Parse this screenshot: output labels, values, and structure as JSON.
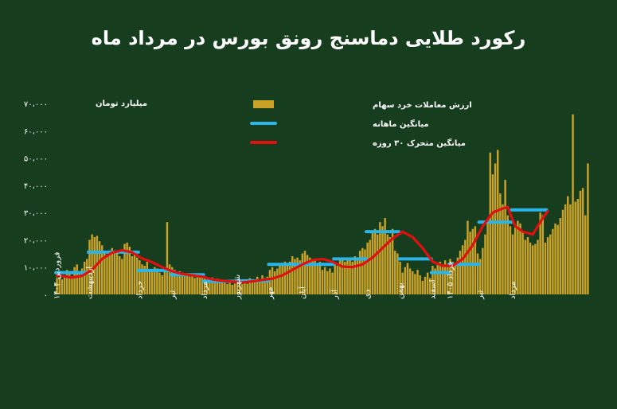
{
  "page": {
    "title": "رکورد طلایی دماسنج رونق بورس در مرداد ماه"
  },
  "colors": {
    "background": "#173d1f",
    "bars": "#c9a227",
    "monthly_avg": "#2ab4e8",
    "moving_avg": "#e01010",
    "text": "#ffffff"
  },
  "chart_data": {
    "type": "bar",
    "title": "رکورد طلایی دماسنج رونق بورس در مرداد ماه",
    "ylabel": "میلیارد تومان",
    "ylim": [
      0,
      70000
    ],
    "yticks": [
      0,
      10000,
      20000,
      30000,
      40000,
      50000,
      60000,
      70000
    ],
    "ytick_labels": [
      "۰",
      "۱۰،۰۰۰",
      "۲۰،۰۰۰",
      "۳۰،۰۰۰",
      "۴۰،۰۰۰",
      "۵۰،۰۰۰",
      "۶۰،۰۰۰",
      "۷۰،۰۰۰"
    ],
    "grid": false,
    "legend_position": "top-center",
    "x_labels": [
      {
        "label": "فروردین ۱۴۰۴",
        "index": 0
      },
      {
        "label": "اردیبهشت",
        "index": 13
      },
      {
        "label": "خرداد",
        "index": 33
      },
      {
        "label": "تیر",
        "index": 46
      },
      {
        "label": "مرداد",
        "index": 59
      },
      {
        "label": "شهریور",
        "index": 72
      },
      {
        "label": "مهر",
        "index": 85
      },
      {
        "label": "آبان",
        "index": 98
      },
      {
        "label": "آذر",
        "index": 111
      },
      {
        "label": "دی",
        "index": 124
      },
      {
        "label": "بهمن",
        "index": 137
      },
      {
        "label": "اسفند",
        "index": 150
      },
      {
        "label": "خرداد ۱۴۰۵",
        "index": 157
      },
      {
        "label": "تیر",
        "index": 169
      },
      {
        "label": "مرداد",
        "index": 182
      }
    ],
    "series": [
      {
        "name": "ارزش معاملات خرد سهام",
        "kind": "bar",
        "values": [
          6000,
          8000,
          5500,
          7000,
          9000,
          8500,
          6500,
          10000,
          11000,
          8000,
          9500,
          12000,
          13000,
          20000,
          22000,
          21000,
          21500,
          19500,
          18000,
          16000,
          14500,
          15000,
          17000,
          15500,
          16000,
          14000,
          13000,
          18500,
          19000,
          17500,
          14000,
          15000,
          13500,
          12500,
          11000,
          10500,
          12000,
          9000,
          8500,
          10000,
          9500,
          8000,
          7000,
          9000,
          26500,
          11000,
          10000,
          9000,
          7500,
          8500,
          8000,
          7000,
          7500,
          6500,
          7000,
          6000,
          7500,
          6800,
          7200,
          6000,
          5500,
          5000,
          6200,
          4500,
          5800,
          4800,
          5200,
          4200,
          3800,
          4500,
          3500,
          4000,
          4200,
          5000,
          3800,
          4500,
          3900,
          6000,
          5500,
          5000,
          6500,
          5200,
          7000,
          6000,
          6500,
          9000,
          10000,
          8500,
          9500,
          11000,
          11500,
          12000,
          10500,
          12000,
          14000,
          13000,
          13500,
          12500,
          15000,
          16000,
          14500,
          13500,
          12500,
          13000,
          11000,
          12000,
          9000,
          10000,
          8500,
          9500,
          8000,
          11000,
          10500,
          12500,
          13000,
          12000,
          12500,
          13000,
          12000,
          14000,
          13500,
          16000,
          17000,
          16500,
          19000,
          20000,
          23000,
          24000,
          22000,
          26500,
          25000,
          28000,
          22000,
          21000,
          24000,
          16000,
          15000,
          12000,
          8000,
          10000,
          11500,
          9500,
          8500,
          7500,
          9000,
          7000,
          5000,
          6500,
          8000,
          6000,
          10500,
          9500,
          11500,
          12000,
          11000,
          12500,
          10000,
          13000,
          12000,
          11500,
          13500,
          16000,
          18000,
          20000,
          27000,
          23000,
          24000,
          25000,
          15000,
          13000,
          17000,
          22000,
          26000,
          52000,
          44000,
          48000,
          53000,
          37000,
          33000,
          42000,
          29000,
          25000,
          22000,
          24500,
          27000,
          26000,
          23000,
          20000,
          21000,
          19000,
          18000,
          18500,
          20000,
          30000,
          29000,
          19000,
          21000,
          22000,
          24000,
          26000,
          25500,
          28000,
          31000,
          33000,
          36000,
          33000,
          66000,
          34000,
          35000,
          38000,
          39000,
          29000,
          48000
        ]
      },
      {
        "name": "میانگین ماهانه",
        "kind": "step",
        "segments": [
          {
            "start": 0,
            "end": 12,
            "value": 8000
          },
          {
            "start": 13,
            "end": 32,
            "value": 15500
          },
          {
            "start": 33,
            "end": 45,
            "value": 8800
          },
          {
            "start": 46,
            "end": 58,
            "value": 7200
          },
          {
            "start": 59,
            "end": 71,
            "value": 4800
          },
          {
            "start": 72,
            "end": 84,
            "value": 5000
          },
          {
            "start": 85,
            "end": 97,
            "value": 11000
          },
          {
            "start": 98,
            "end": 110,
            "value": 11000
          },
          {
            "start": 111,
            "end": 123,
            "value": 13000
          },
          {
            "start": 124,
            "end": 136,
            "value": 23000
          },
          {
            "start": 137,
            "end": 149,
            "value": 13000
          },
          {
            "start": 150,
            "end": 156,
            "value": 8000
          },
          {
            "start": 157,
            "end": 168,
            "value": 11000
          },
          {
            "start": 169,
            "end": 181,
            "value": 26500
          },
          {
            "start": 182,
            "end": 195,
            "value": 31000
          }
        ]
      },
      {
        "name": "میانگین متحرک ۳۰ روزه",
        "kind": "line",
        "points": [
          [
            0,
            7000
          ],
          [
            6,
            6200
          ],
          [
            10,
            6800
          ],
          [
            14,
            9000
          ],
          [
            18,
            13000
          ],
          [
            22,
            15300
          ],
          [
            26,
            16200
          ],
          [
            30,
            15400
          ],
          [
            34,
            13200
          ],
          [
            38,
            11800
          ],
          [
            42,
            10000
          ],
          [
            46,
            8500
          ],
          [
            50,
            7500
          ],
          [
            54,
            7000
          ],
          [
            58,
            6500
          ],
          [
            62,
            5500
          ],
          [
            66,
            5000
          ],
          [
            70,
            4700
          ],
          [
            74,
            4400
          ],
          [
            78,
            4800
          ],
          [
            82,
            5300
          ],
          [
            86,
            5800
          ],
          [
            90,
            7000
          ],
          [
            94,
            9000
          ],
          [
            98,
            11000
          ],
          [
            102,
            12600
          ],
          [
            106,
            13000
          ],
          [
            110,
            12000
          ],
          [
            114,
            10200
          ],
          [
            118,
            10000
          ],
          [
            122,
            11000
          ],
          [
            126,
            13500
          ],
          [
            130,
            17000
          ],
          [
            134,
            20500
          ],
          [
            138,
            23000
          ],
          [
            142,
            21000
          ],
          [
            146,
            17000
          ],
          [
            150,
            12000
          ],
          [
            154,
            10500
          ],
          [
            158,
            10500
          ],
          [
            162,
            13000
          ],
          [
            166,
            18000
          ],
          [
            170,
            25000
          ],
          [
            174,
            30000
          ],
          [
            178,
            31500
          ],
          [
            180,
            32000
          ],
          [
            183,
            25000
          ],
          [
            186,
            23000
          ],
          [
            190,
            22000
          ],
          [
            194,
            28000
          ],
          [
            196,
            30500
          ]
        ]
      }
    ]
  }
}
